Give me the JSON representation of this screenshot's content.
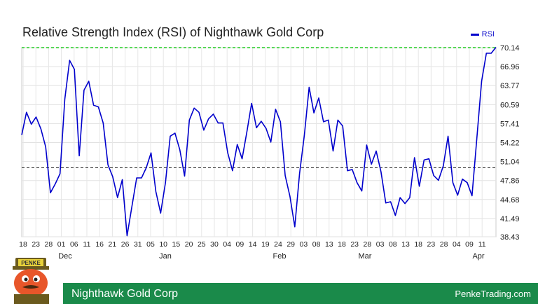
{
  "chart_data": {
    "type": "line",
    "title": "Relative Strength Index (RSI) of Nighthawk Gold Corp",
    "legend": "RSI",
    "legend_position": "top-right",
    "ylim": [
      38.43,
      70.14
    ],
    "y_ticks": [
      "70.14",
      "66.96",
      "63.77",
      "60.59",
      "57.41",
      "54.22",
      "51.04",
      "47.86",
      "44.68",
      "41.49",
      "38.43"
    ],
    "x_ticks": [
      "18",
      "23",
      "28",
      "01",
      "06",
      "11",
      "16",
      "21",
      "26",
      "01",
      "06",
      "11",
      "16",
      "21",
      "26",
      "31",
      "05",
      "10",
      "15",
      "20",
      "25",
      "30",
      "04",
      "09",
      "14",
      "19",
      "24",
      "01",
      "06",
      "11",
      "16",
      "21",
      "26",
      "01",
      "06",
      "11",
      "16",
      "21",
      "26",
      "31",
      "05",
      "10",
      "15",
      "20",
      "25",
      "30",
      "04",
      "09",
      "14",
      "19",
      "24",
      "01",
      "06",
      "11",
      "16",
      "21",
      "26",
      "31",
      "05",
      "10",
      "15",
      "20",
      "25",
      "30",
      "04",
      "09",
      "14",
      "19",
      "24",
      "29",
      "04",
      "09",
      "14",
      "19",
      "24",
      "29",
      "04",
      "09",
      "14",
      "19",
      "24",
      "29",
      "03",
      "08",
      "13",
      "18",
      "23",
      "28",
      "03",
      "08",
      "13",
      "18",
      "23",
      "28",
      "03",
      "08",
      "13",
      "18",
      "23",
      "28"
    ],
    "x_tick_labels": [
      "18",
      "23",
      "28",
      "01",
      "06",
      "11",
      "16",
      "21",
      "26",
      "31",
      "05",
      "10",
      "15",
      "20",
      "25",
      "30",
      "04",
      "09",
      "14",
      "19",
      "24",
      "01",
      "06",
      "11",
      "16",
      "21",
      "26",
      "31",
      "05",
      "10",
      "15",
      "20",
      "25",
      "30",
      "04",
      "09",
      "14",
      "19",
      "24",
      "29",
      "04",
      "09",
      "14",
      "19",
      "24",
      "29",
      "04",
      "09",
      "14",
      "19",
      "24",
      "29",
      "03",
      "08",
      "13",
      "18",
      "23",
      "28",
      "03",
      "08",
      "13",
      "18",
      "23",
      "28",
      "03",
      "08",
      "13",
      "18",
      "23",
      "28",
      "03",
      "08",
      "13",
      "18",
      "23",
      "28",
      "03",
      "08",
      "13",
      "18",
      "23",
      "28",
      "03",
      "08",
      "13",
      "18",
      "23",
      "28"
    ],
    "x_labels_shown": [
      "18",
      "23",
      "28",
      "01",
      "06",
      "11",
      "16",
      "21",
      "26",
      "31",
      "05",
      "10",
      "15",
      "20",
      "25",
      "30",
      "04",
      "09",
      "14",
      "19",
      "24",
      "29",
      "03",
      "08",
      "13",
      "18",
      "23",
      "28",
      "03",
      "08",
      "13",
      "18",
      "23",
      "28",
      "03",
      "08",
      "13",
      "18",
      "23",
      "28"
    ],
    "months": [
      "Dec",
      "Jan",
      "Feb",
      "Mar",
      "Apr"
    ],
    "ref_lines": [
      70.14,
      50
    ],
    "grid": true,
    "series": [
      {
        "name": "RSI",
        "color": "#0000cc",
        "values": [
          55.5,
          59.3,
          57.3,
          58.5,
          56.5,
          53.5,
          45.8,
          47.3,
          49,
          61.5,
          68,
          66.5,
          52,
          63,
          64.5,
          60.5,
          60.2,
          57.5,
          50.5,
          48.5,
          45,
          48,
          38.6,
          43.5,
          48.3,
          48.3,
          50,
          52.5,
          46,
          42.4,
          47.5,
          55.3,
          55.8,
          53,
          48.6,
          58,
          60,
          59.3,
          56.3,
          58.2,
          59,
          57.5,
          57.5,
          52.5,
          49.5,
          53.9,
          51.5,
          56,
          60.8,
          56.7,
          57.8,
          56.6,
          54.3,
          59.8,
          57.7,
          48.7,
          45.2,
          40.1,
          49,
          55.5,
          63.5,
          59.2,
          61.7,
          57.7,
          58,
          52.8,
          58,
          57,
          49.5,
          49.7,
          47.5,
          46.1,
          53.8,
          50.6,
          52.8,
          49.3,
          44.1,
          44.3,
          42,
          45,
          44,
          45,
          51.7,
          46.9,
          51.3,
          51.5,
          48.7,
          47.9,
          50.3,
          55.3,
          47.5,
          45.4,
          48.1,
          47.5,
          45.3,
          54.8,
          64.5,
          69.2,
          69.2,
          70.2
        ]
      }
    ]
  },
  "month_labels": [
    {
      "label": "Dec",
      "index": 11
    },
    {
      "label": "Jan",
      "index": 32
    },
    {
      "label": "Feb",
      "index": 55
    },
    {
      "label": "Mar",
      "index": 74
    },
    {
      "label": "Apr",
      "index": 97
    }
  ],
  "day_ticks": [
    "18",
    "23",
    "28",
    "01",
    "06",
    "11",
    "16",
    "21",
    "26",
    "31",
    "05",
    "10",
    "15",
    "20",
    "25",
    "30",
    "04",
    "09",
    "14",
    "19",
    "24",
    "29",
    "03",
    "08",
    "13",
    "18",
    "23",
    "28",
    "03",
    "08",
    "13",
    "18",
    "23",
    "28",
    "04",
    "09",
    "11"
  ],
  "footer": {
    "company": "Nighthawk Gold Corp",
    "site": "PenkeTrading.com"
  },
  "mascot_badge": "PENKE",
  "colors": {
    "line": "#0000cc",
    "top_ref": "#22cc22",
    "mid_ref": "#333333",
    "footer": "#1a8a4a"
  }
}
